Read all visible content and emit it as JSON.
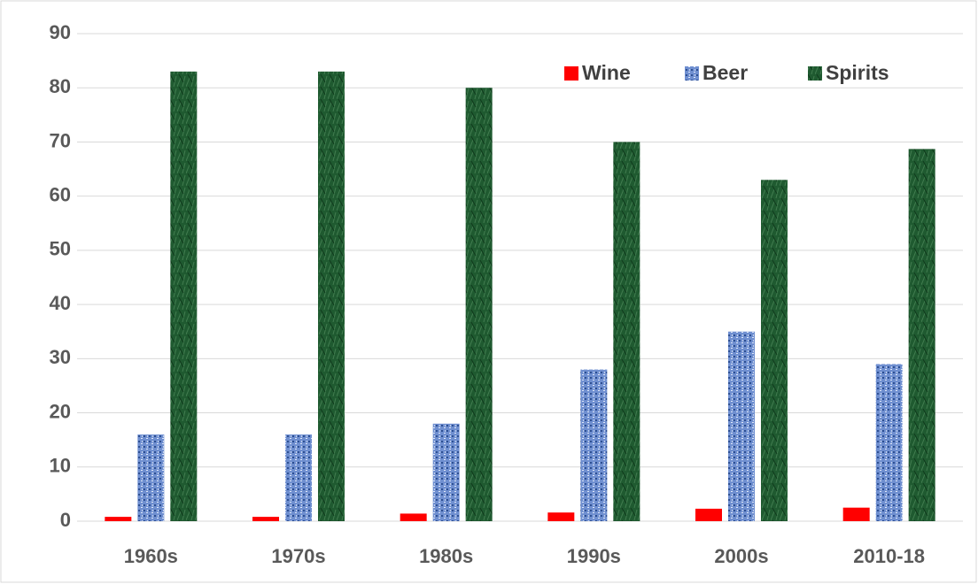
{
  "chart_data": {
    "type": "bar",
    "categories": [
      "1960s",
      "1970s",
      "1980s",
      "1990s",
      "2000s",
      "2010-18"
    ],
    "series": [
      {
        "name": "Wine",
        "color": "#ff0000",
        "values": [
          0.8,
          0.8,
          1.4,
          1.6,
          2.3,
          2.5
        ]
      },
      {
        "name": "Beer",
        "color": "#6f8fd0",
        "values": [
          16,
          16,
          18,
          28,
          35,
          29
        ]
      },
      {
        "name": "Spirits",
        "color": "#1f5a30",
        "values": [
          83,
          83,
          80,
          70,
          63,
          68.7
        ]
      }
    ],
    "ylim": [
      0,
      90
    ],
    "yticks": [
      0,
      10,
      20,
      30,
      40,
      50,
      60,
      70,
      80,
      90
    ],
    "grid": true,
    "legend": "top-right"
  }
}
